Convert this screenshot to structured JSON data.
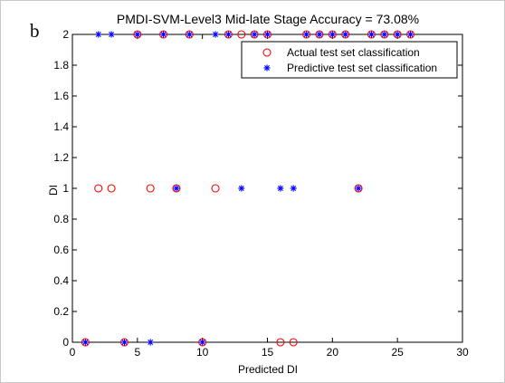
{
  "panel_label": "b",
  "chart_data": {
    "type": "scatter",
    "title": "PMDI-SVM-Level3 Mid-late Stage Accuracy = 73.08%",
    "xlabel": "Predicted DI",
    "ylabel": "DI",
    "xlim": [
      0,
      30
    ],
    "ylim": [
      0,
      2
    ],
    "xticks": [
      0,
      5,
      10,
      15,
      20,
      25,
      30
    ],
    "yticks": [
      0,
      0.2,
      0.4,
      0.6,
      0.8,
      1,
      1.2,
      1.4,
      1.6,
      1.8,
      2
    ],
    "grid": false,
    "legend_position": "top-right",
    "series": [
      {
        "name": "Actual test set classification",
        "marker": "circle",
        "color": "#ff0000",
        "x": [
          1,
          4,
          10,
          16,
          17,
          2,
          3,
          6,
          8,
          11,
          22,
          5,
          7,
          9,
          12,
          13,
          14,
          15,
          18,
          19,
          20,
          21,
          23,
          24,
          25,
          26
        ],
        "y": [
          0,
          0,
          0,
          0,
          0,
          1,
          1,
          1,
          1,
          1,
          1,
          2,
          2,
          2,
          2,
          2,
          2,
          2,
          2,
          2,
          2,
          2,
          2,
          2,
          2,
          2
        ]
      },
      {
        "name": "Predictive test set classification",
        "marker": "asterisk",
        "color": "#0000ff",
        "x": [
          1,
          4,
          6,
          10,
          8,
          13,
          16,
          17,
          22,
          2,
          3,
          5,
          7,
          9,
          11,
          12,
          14,
          15,
          18,
          19,
          20,
          21,
          23,
          24,
          25,
          26
        ],
        "y": [
          0,
          0,
          0,
          0,
          1,
          1,
          1,
          1,
          1,
          2,
          2,
          2,
          2,
          2,
          2,
          2,
          2,
          2,
          2,
          2,
          2,
          2,
          2,
          2,
          2,
          2
        ]
      }
    ]
  }
}
